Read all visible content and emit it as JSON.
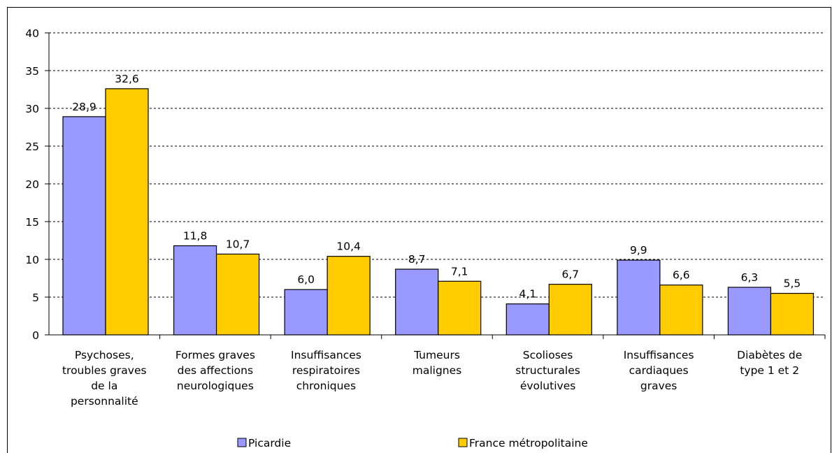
{
  "chart_data": {
    "type": "bar",
    "categories": [
      "Psychoses,\ntroubles graves\nde la\npersonnalité",
      "Formes graves\ndes affections\nneurologiques",
      "Insuffisances\nrespiratoires\nchroniques",
      "Tumeurs\nmalignes",
      "Scolioses\nstructurales\névolutives",
      "Insuffisances\ncardiaques\ngraves",
      "Diabètes de\ntype 1 et 2"
    ],
    "series": [
      {
        "name": "Picardie",
        "color": "#9999ff",
        "values": [
          28.9,
          11.8,
          6.0,
          8.7,
          4.1,
          9.9,
          6.3
        ],
        "value_labels": [
          "28,9",
          "11,8",
          "6,0",
          "8,7",
          "4,1",
          "9,9",
          "6,3"
        ]
      },
      {
        "name": "France métropolitaine",
        "color": "#ffcc00",
        "values": [
          32.6,
          10.7,
          10.4,
          7.1,
          6.7,
          6.6,
          5.5
        ],
        "value_labels": [
          "32,6",
          "10,7",
          "10,4",
          "7,1",
          "6,7",
          "6,6",
          "5,5"
        ]
      }
    ],
    "ylim": [
      0,
      40
    ],
    "yticks": [
      0,
      5,
      10,
      15,
      20,
      25,
      30,
      35,
      40
    ],
    "grid": true,
    "legend": "bottom"
  }
}
